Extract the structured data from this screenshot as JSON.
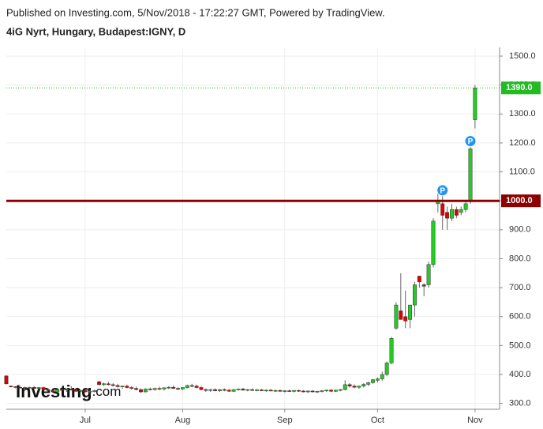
{
  "chart_data": {
    "type": "candlestick",
    "title": "Published on Investing.com, 5/Nov/2018 - 17:22:27 GMT, Powered by TradingView.",
    "subtitle": "4iG Nyrt, Hungary, Budapest:IGNY, D",
    "watermark": "Investing",
    "watermark_suffix": ".com",
    "up_color": "#22cc22",
    "down_color": "#dd0000",
    "ylim": [
      280,
      1530
    ],
    "yticks": [
      {
        "value": 300,
        "label": "300.0"
      },
      {
        "value": 400,
        "label": "400.0"
      },
      {
        "value": 500,
        "label": "500.0"
      },
      {
        "value": 600,
        "label": "600.0"
      },
      {
        "value": 700,
        "label": "700.0"
      },
      {
        "value": 800,
        "label": "800.0"
      },
      {
        "value": 900,
        "label": "900.0"
      },
      {
        "value": 1000,
        "label": "1000.0"
      },
      {
        "value": 1100,
        "label": "1100.0"
      },
      {
        "value": 1200,
        "label": "1200.0"
      },
      {
        "value": 1300,
        "label": "1300.0"
      },
      {
        "value": 1400,
        "label": "1400.0"
      },
      {
        "value": 1500,
        "label": "1500.0"
      }
    ],
    "grid": true,
    "hline": {
      "value": 1000,
      "label": "1000.0",
      "color": "#8b0000"
    },
    "last_price": {
      "value": 1390,
      "label": "1390.0",
      "color": "#22bb22"
    },
    "markers": [
      {
        "index": 94,
        "label": "P"
      },
      {
        "index": 100,
        "label": "P"
      }
    ],
    "categories": [
      null,
      null,
      null,
      null,
      null,
      null,
      null,
      null,
      null,
      null,
      null,
      null,
      null,
      null,
      null,
      null,
      null,
      "Jul",
      null,
      null,
      null,
      null,
      null,
      null,
      null,
      null,
      null,
      null,
      null,
      null,
      null,
      null,
      null,
      null,
      null,
      null,
      null,
      null,
      "Aug",
      null,
      null,
      null,
      null,
      null,
      null,
      null,
      null,
      null,
      null,
      null,
      null,
      null,
      null,
      null,
      null,
      null,
      null,
      null,
      null,
      null,
      "Sep",
      null,
      null,
      null,
      null,
      null,
      null,
      null,
      null,
      null,
      null,
      null,
      null,
      null,
      null,
      null,
      null,
      null,
      null,
      null,
      "Oct",
      null,
      null,
      null,
      null,
      null,
      null,
      null,
      null,
      null,
      null,
      null,
      null,
      null,
      null,
      null,
      null,
      null,
      null,
      null,
      null,
      "Nov"
    ],
    "candles": [
      [
        395,
        398,
        365,
        368
      ],
      [
        360,
        362,
        355,
        358
      ],
      [
        358,
        360,
        352,
        356
      ],
      [
        356,
        360,
        352,
        355
      ],
      [
        355,
        358,
        350,
        353
      ],
      [
        353,
        358,
        350,
        356
      ],
      [
        356,
        360,
        350,
        352
      ],
      [
        352,
        356,
        348,
        355
      ],
      [
        355,
        358,
        346,
        348
      ],
      [
        348,
        352,
        342,
        345
      ],
      [
        345,
        348,
        338,
        340
      ],
      [
        340,
        350,
        338,
        348
      ],
      [
        348,
        352,
        344,
        346
      ],
      [
        346,
        352,
        340,
        350
      ],
      [
        350,
        360,
        345,
        346
      ],
      [
        346,
        350,
        340,
        342
      ],
      [
        342,
        348,
        338,
        345
      ],
      [
        345,
        350,
        338,
        340
      ],
      [
        340,
        346,
        335,
        342
      ],
      [
        342,
        348,
        338,
        344
      ],
      [
        375,
        378,
        362,
        365
      ],
      [
        365,
        372,
        360,
        368
      ],
      [
        368,
        375,
        362,
        365
      ],
      [
        365,
        370,
        358,
        362
      ],
      [
        362,
        368,
        355,
        358
      ],
      [
        358,
        362,
        350,
        360
      ],
      [
        360,
        365,
        352,
        355
      ],
      [
        355,
        360,
        348,
        352
      ],
      [
        352,
        358,
        345,
        348
      ],
      [
        348,
        352,
        336,
        340
      ],
      [
        340,
        352,
        338,
        350
      ],
      [
        350,
        355,
        345,
        348
      ],
      [
        348,
        355,
        344,
        352
      ],
      [
        352,
        358,
        346,
        350
      ],
      [
        350,
        356,
        345,
        354
      ],
      [
        354,
        360,
        350,
        356
      ],
      [
        356,
        362,
        350,
        352
      ],
      [
        352,
        356,
        346,
        350
      ],
      [
        350,
        356,
        346,
        355
      ],
      [
        355,
        365,
        352,
        362
      ],
      [
        362,
        368,
        356,
        360
      ],
      [
        360,
        365,
        352,
        355
      ],
      [
        355,
        360,
        345,
        348
      ],
      [
        348,
        352,
        340,
        345
      ],
      [
        345,
        350,
        340,
        348
      ],
      [
        348,
        352,
        342,
        344
      ],
      [
        344,
        350,
        340,
        348
      ],
      [
        348,
        352,
        342,
        346
      ],
      [
        346,
        350,
        340,
        342
      ],
      [
        342,
        350,
        340,
        348
      ],
      [
        348,
        352,
        344,
        350
      ],
      [
        350,
        354,
        344,
        346
      ],
      [
        346,
        350,
        342,
        348
      ],
      [
        348,
        352,
        344,
        345
      ],
      [
        345,
        350,
        342,
        347
      ],
      [
        347,
        350,
        343,
        344
      ],
      [
        344,
        348,
        340,
        346
      ],
      [
        346,
        350,
        342,
        343
      ],
      [
        343,
        348,
        340,
        345
      ],
      [
        345,
        348,
        340,
        342
      ],
      [
        342,
        346,
        338,
        344
      ],
      [
        344,
        348,
        340,
        342
      ],
      [
        342,
        346,
        338,
        345
      ],
      [
        345,
        348,
        340,
        343
      ],
      [
        343,
        346,
        338,
        340
      ],
      [
        340,
        345,
        336,
        343
      ],
      [
        343,
        346,
        338,
        340
      ],
      [
        340,
        344,
        336,
        342
      ],
      [
        342,
        346,
        338,
        344
      ],
      [
        344,
        348,
        340,
        346
      ],
      [
        346,
        350,
        340,
        342
      ],
      [
        342,
        348,
        340,
        346
      ],
      [
        346,
        350,
        342,
        348
      ],
      [
        348,
        380,
        345,
        365
      ],
      [
        365,
        370,
        355,
        360
      ],
      [
        360,
        366,
        352,
        356
      ],
      [
        356,
        362,
        350,
        360
      ],
      [
        360,
        370,
        355,
        366
      ],
      [
        366,
        375,
        360,
        372
      ],
      [
        372,
        385,
        368,
        382
      ],
      [
        380,
        390,
        372,
        385
      ],
      [
        385,
        410,
        378,
        400
      ],
      [
        400,
        445,
        395,
        440
      ],
      [
        440,
        530,
        435,
        525
      ],
      [
        560,
        650,
        555,
        640
      ],
      [
        620,
        750,
        590,
        590
      ],
      [
        600,
        690,
        560,
        585
      ],
      [
        590,
        640,
        560,
        640
      ],
      [
        640,
        720,
        600,
        710
      ],
      [
        740,
        740,
        700,
        720
      ],
      [
        710,
        715,
        670,
        705
      ],
      [
        710,
        790,
        700,
        780
      ],
      [
        780,
        940,
        770,
        930
      ],
      [
        990,
        1040,
        960,
        1000
      ],
      [
        990,
        1020,
        900,
        950
      ],
      [
        960,
        980,
        900,
        940
      ],
      [
        940,
        990,
        930,
        970
      ],
      [
        970,
        980,
        940,
        950
      ],
      [
        960,
        980,
        950,
        970
      ],
      [
        970,
        1000,
        960,
        990
      ],
      [
        1000,
        1190,
        990,
        1180
      ],
      [
        1280,
        1400,
        1250,
        1390
      ]
    ]
  }
}
